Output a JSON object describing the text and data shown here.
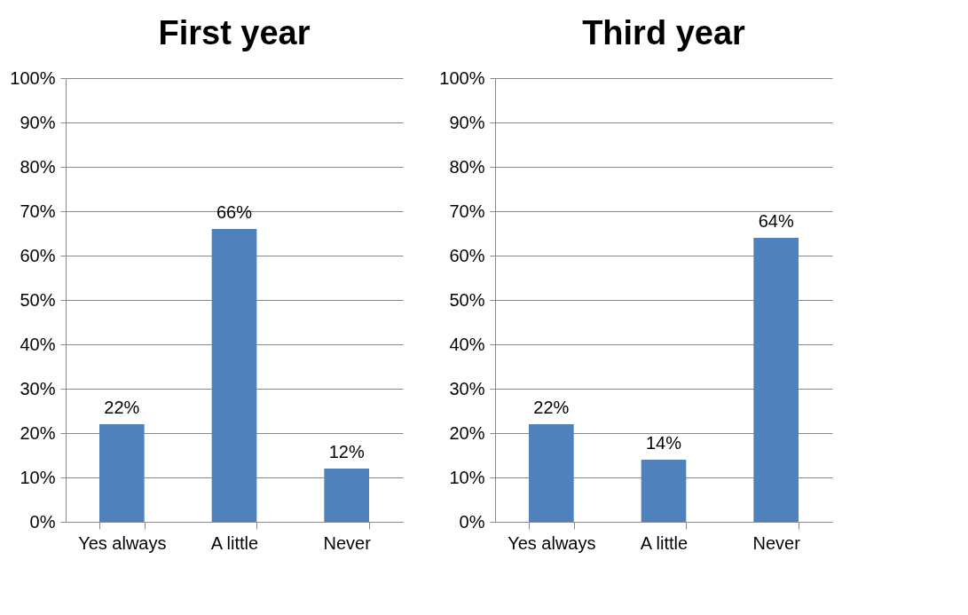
{
  "chart_data": [
    {
      "type": "bar",
      "title": "First year",
      "categories": [
        "Yes always",
        "A little",
        "Never"
      ],
      "values": [
        22,
        66,
        12
      ],
      "color": "#4f81bd",
      "value_labels": [
        "22%",
        "66%",
        "12%"
      ],
      "ylim": [
        0,
        100
      ],
      "yticks": [
        {
          "value": 0,
          "label": "0%"
        },
        {
          "value": 10,
          "label": "10%"
        },
        {
          "value": 20,
          "label": "20%"
        },
        {
          "value": 30,
          "label": "30%"
        },
        {
          "value": 40,
          "label": "40%"
        },
        {
          "value": 50,
          "label": "50%"
        },
        {
          "value": 60,
          "label": "60%"
        },
        {
          "value": 70,
          "label": "70%"
        },
        {
          "value": 80,
          "label": "80%"
        },
        {
          "value": 90,
          "label": "90%"
        },
        {
          "value": 100,
          "label": "100%"
        }
      ],
      "grid": "y"
    },
    {
      "type": "bar",
      "title": "Third year",
      "categories": [
        "Yes always",
        "A little",
        "Never"
      ],
      "values": [
        22,
        14,
        64
      ],
      "color": "#4f81bd",
      "value_labels": [
        "22%",
        "14%",
        "64%"
      ],
      "ylim": [
        0,
        100
      ],
      "yticks": [
        {
          "value": 0,
          "label": "0%"
        },
        {
          "value": 10,
          "label": "10%"
        },
        {
          "value": 20,
          "label": "20%"
        },
        {
          "value": 30,
          "label": "30%"
        },
        {
          "value": 40,
          "label": "40%"
        },
        {
          "value": 50,
          "label": "50%"
        },
        {
          "value": 60,
          "label": "60%"
        },
        {
          "value": 70,
          "label": "70%"
        },
        {
          "value": 80,
          "label": "80%"
        },
        {
          "value": 90,
          "label": "90%"
        },
        {
          "value": 100,
          "label": "100%"
        }
      ],
      "grid": "y"
    }
  ]
}
